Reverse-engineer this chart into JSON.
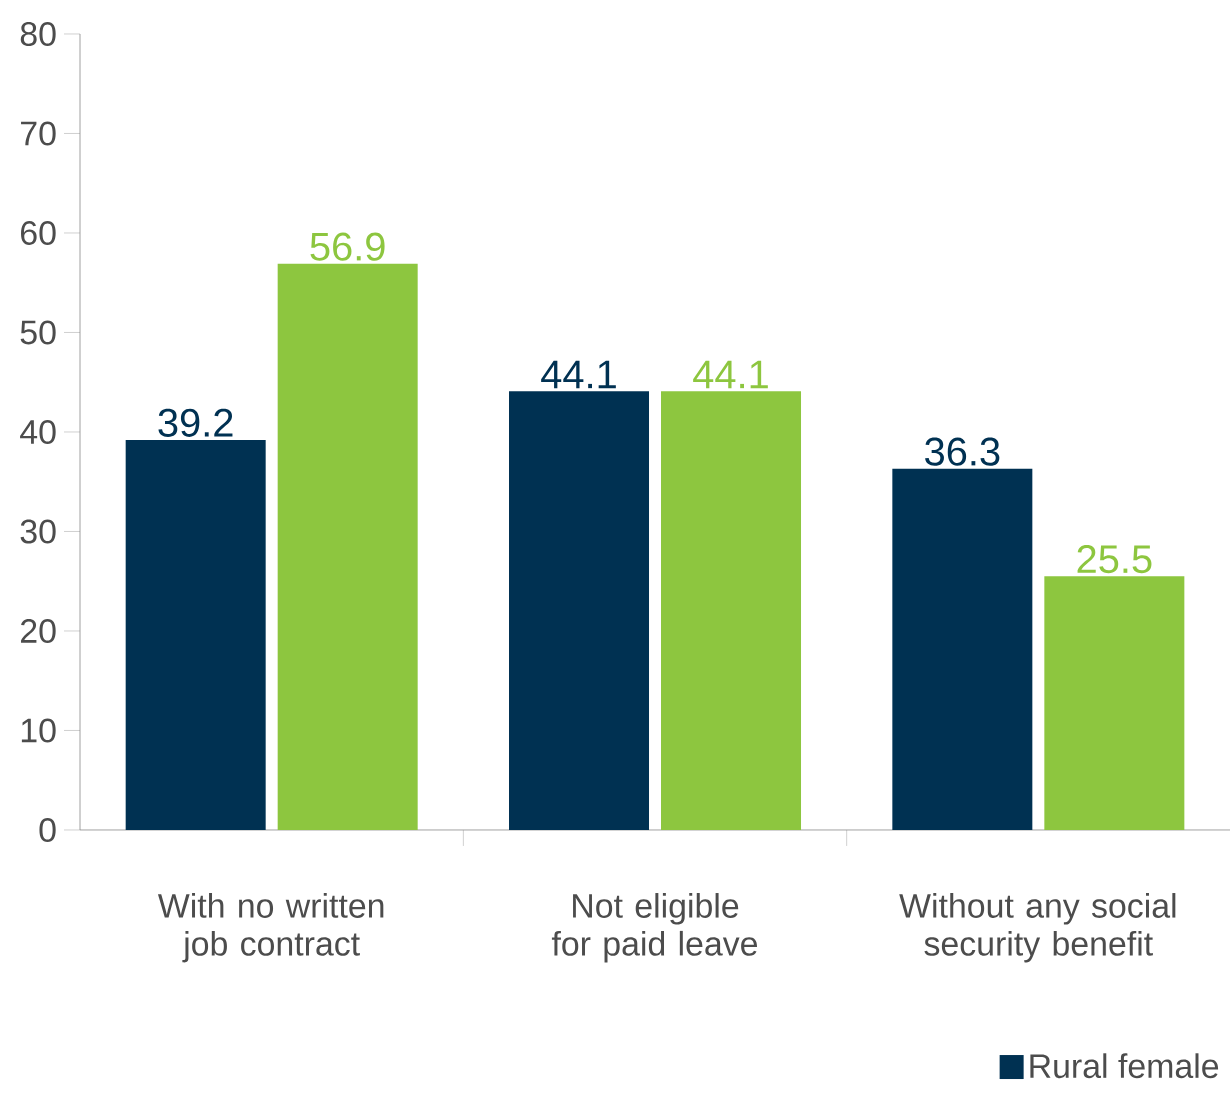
{
  "chart_data": {
    "type": "bar",
    "categories": [
      "With no written job contract",
      "Not eligible for paid leave",
      "Without any social security benefit"
    ],
    "series": [
      {
        "name": "Rural female",
        "color": "#003152",
        "values": [
          39.2,
          44.1,
          36.3
        ]
      },
      {
        "color": "#8dc63f",
        "values": [
          56.9,
          44.1,
          25.5
        ]
      }
    ],
    "ylim": [
      0,
      80
    ],
    "yticks": [
      0,
      10,
      20,
      30,
      40,
      50,
      60,
      70,
      80
    ],
    "data_labels": true,
    "grid": false,
    "legend": "bottom right"
  }
}
